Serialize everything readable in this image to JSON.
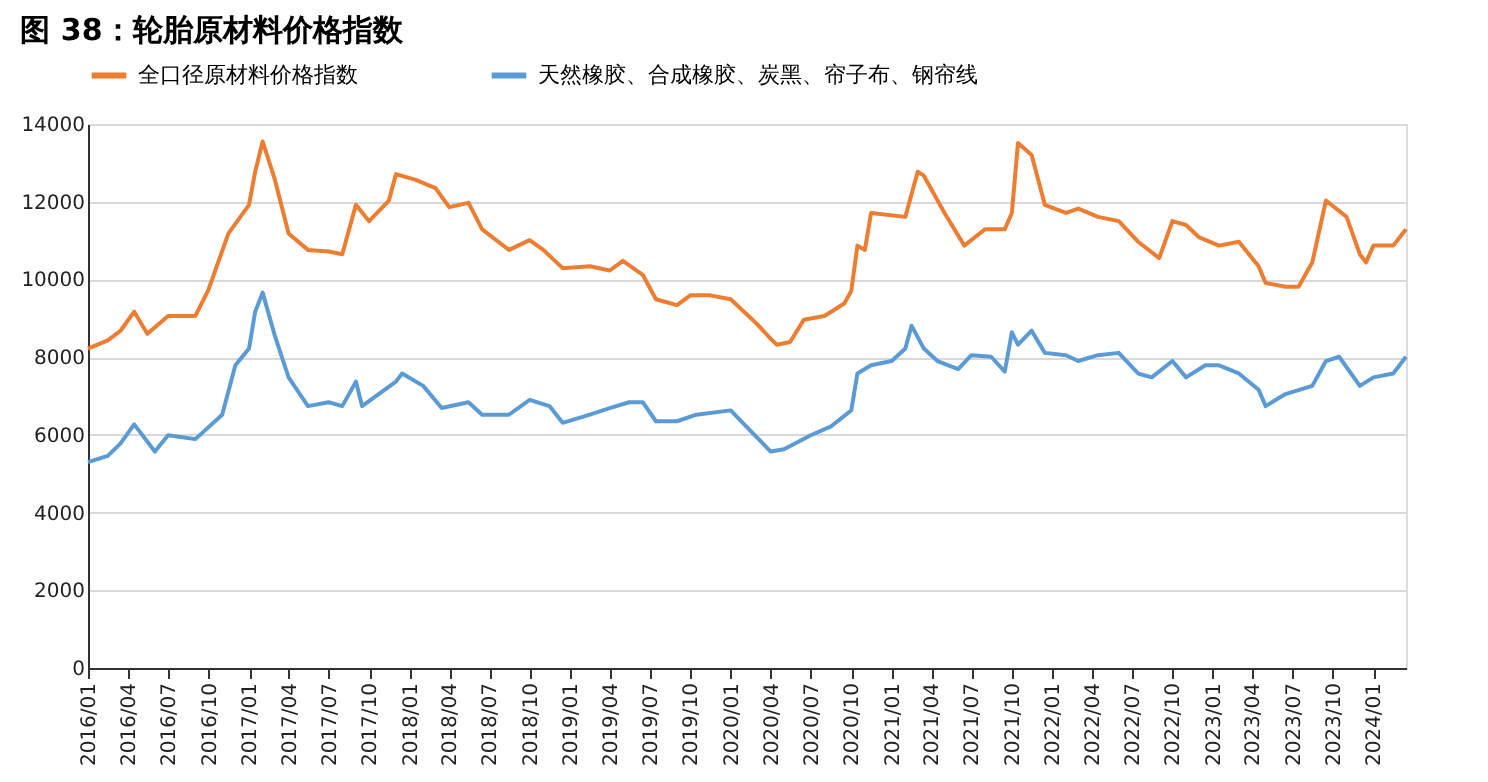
{
  "chart_data": {
    "type": "line",
    "title": "图 38：轮胎原材料价格指数",
    "xlim": [
      "2016-01-01",
      "2024-03-15"
    ],
    "xticks": [
      {
        "value": "2016-01-01",
        "label": "2016/01"
      },
      {
        "value": "2016-04-01",
        "label": "2016/04"
      },
      {
        "value": "2016-07-01",
        "label": "2016/07"
      },
      {
        "value": "2016-10-01",
        "label": "2016/10"
      },
      {
        "value": "2017-01-01",
        "label": "2017/01"
      },
      {
        "value": "2017-04-01",
        "label": "2017/04"
      },
      {
        "value": "2017-07-01",
        "label": "2017/07"
      },
      {
        "value": "2017-10-01",
        "label": "2017/10"
      },
      {
        "value": "2018-01-01",
        "label": "2018/01"
      },
      {
        "value": "2018-04-01",
        "label": "2018/04"
      },
      {
        "value": "2018-07-01",
        "label": "2018/07"
      },
      {
        "value": "2018-10-01",
        "label": "2018/10"
      },
      {
        "value": "2019-01-01",
        "label": "2019/01"
      },
      {
        "value": "2019-04-01",
        "label": "2019/04"
      },
      {
        "value": "2019-07-01",
        "label": "2019/07"
      },
      {
        "value": "2019-10-01",
        "label": "2019/10"
      },
      {
        "value": "2020-01-01",
        "label": "2020/01"
      },
      {
        "value": "2020-04-01",
        "label": "2020/04"
      },
      {
        "value": "2020-07-01",
        "label": "2020/07"
      },
      {
        "value": "2020-10-01",
        "label": "2020/10"
      },
      {
        "value": "2021-01-01",
        "label": "2021/01"
      },
      {
        "value": "2021-04-01",
        "label": "2021/04"
      },
      {
        "value": "2021-07-01",
        "label": "2021/07"
      },
      {
        "value": "2021-10-01",
        "label": "2021/10"
      },
      {
        "value": "2022-01-01",
        "label": "2022/01"
      },
      {
        "value": "2022-04-01",
        "label": "2022/04"
      },
      {
        "value": "2022-07-01",
        "label": "2022/07"
      },
      {
        "value": "2022-10-01",
        "label": "2022/10"
      },
      {
        "value": "2023-01-01",
        "label": "2023/01"
      },
      {
        "value": "2023-04-01",
        "label": "2023/04"
      },
      {
        "value": "2023-07-01",
        "label": "2023/07"
      },
      {
        "value": "2023-10-01",
        "label": "2023/10"
      },
      {
        "value": "2024-01-01",
        "label": "2024/01"
      }
    ],
    "ylim": [
      0,
      14000
    ],
    "yticks": [
      0,
      2000,
      4000,
      6000,
      8000,
      10000,
      12000,
      14000
    ],
    "grid": "y",
    "legend": "top",
    "marker": "none",
    "line_style": "solid",
    "series": [
      {
        "name": "全口径原材料价格指数",
        "color": "#ed7d31",
        "x": [
          "2016-01-01",
          "2016-02-15",
          "2016-03-15",
          "2016-04-15",
          "2016-05-15",
          "2016-07-01",
          "2016-09-01",
          "2016-10-01",
          "2016-11-15",
          "2017-01-01",
          "2017-01-15",
          "2017-02-01",
          "2017-03-01",
          "2017-04-01",
          "2017-05-15",
          "2017-07-01",
          "2017-08-01",
          "2017-09-01",
          "2017-10-01",
          "2017-11-15",
          "2017-12-01",
          "2018-01-15",
          "2018-03-01",
          "2018-04-01",
          "2018-05-15",
          "2018-06-15",
          "2018-08-15",
          "2018-10-01",
          "2018-11-01",
          "2018-12-15",
          "2019-02-15",
          "2019-04-01",
          "2019-05-01",
          "2019-06-15",
          "2019-07-15",
          "2019-09-01",
          "2019-10-01",
          "2019-11-15",
          "2020-01-01",
          "2020-03-01",
          "2020-04-01",
          "2020-04-15",
          "2020-05-15",
          "2020-06-15",
          "2020-08-01",
          "2020-09-15",
          "2020-10-01",
          "2020-10-15",
          "2020-11-01",
          "2020-11-15",
          "2021-02-01",
          "2021-03-01",
          "2021-03-15",
          "2021-05-01",
          "2021-06-15",
          "2021-08-01",
          "2021-09-15",
          "2021-10-01",
          "2021-10-15",
          "2021-11-15",
          "2021-12-15",
          "2022-02-01",
          "2022-03-01",
          "2022-04-15",
          "2022-06-01",
          "2022-07-15",
          "2022-09-01",
          "2022-10-01",
          "2022-11-01",
          "2022-12-01",
          "2023-01-15",
          "2023-03-01",
          "2023-04-15",
          "2023-05-01",
          "2023-06-15",
          "2023-07-15",
          "2023-08-15",
          "2023-09-15",
          "2023-11-01",
          "2023-12-01",
          "2023-12-15",
          "2024-01-01",
          "2024-02-15",
          "2024-03-15"
        ],
        "values": [
          8220,
          8430,
          8680,
          9170,
          8600,
          9060,
          9060,
          9740,
          11180,
          11920,
          12770,
          13550,
          12560,
          11180,
          10760,
          10720,
          10650,
          11920,
          11500,
          12030,
          12710,
          12560,
          12350,
          11860,
          11970,
          11290,
          10760,
          11010,
          10760,
          10290,
          10340,
          10230,
          10480,
          10120,
          9490,
          9340,
          9590,
          9590,
          9490,
          8850,
          8470,
          8320,
          8390,
          8960,
          9060,
          9380,
          9700,
          10870,
          10760,
          11710,
          11610,
          12770,
          12670,
          11710,
          10870,
          11290,
          11290,
          11710,
          13510,
          13200,
          11920,
          11710,
          11820,
          11610,
          11500,
          10970,
          10550,
          11500,
          11400,
          11080,
          10870,
          10970,
          10340,
          9910,
          9810,
          9810,
          10440,
          12030,
          11610,
          10650,
          10440,
          10870,
          10870,
          11290
        ]
      },
      {
        "name": "天然橡胶、合成橡胶、炭黑、帘子布、钢帘线",
        "color": "#5b9bd5",
        "x": [
          "2016-01-01",
          "2016-02-15",
          "2016-03-15",
          "2016-04-15",
          "2016-06-01",
          "2016-07-01",
          "2016-09-01",
          "2016-11-01",
          "2016-12-01",
          "2017-01-01",
          "2017-01-15",
          "2017-02-01",
          "2017-03-01",
          "2017-04-01",
          "2017-05-15",
          "2017-07-01",
          "2017-08-01",
          "2017-09-01",
          "2017-09-15",
          "2017-12-01",
          "2017-12-15",
          "2018-02-01",
          "2018-03-15",
          "2018-05-15",
          "2018-06-15",
          "2018-08-15",
          "2018-10-01",
          "2018-11-15",
          "2018-12-15",
          "2019-02-15",
          "2019-04-01",
          "2019-05-15",
          "2019-06-15",
          "2019-07-15",
          "2019-09-01",
          "2019-10-15",
          "2020-01-01",
          "2020-02-15",
          "2020-04-01",
          "2020-05-01",
          "2020-07-01",
          "2020-08-15",
          "2020-10-01",
          "2020-10-15",
          "2020-11-15",
          "2021-01-01",
          "2021-02-01",
          "2021-02-15",
          "2021-03-15",
          "2021-04-15",
          "2021-06-01",
          "2021-07-01",
          "2021-08-15",
          "2021-09-15",
          "2021-10-01",
          "2021-10-15",
          "2021-11-15",
          "2021-12-15",
          "2022-02-01",
          "2022-03-01",
          "2022-04-15",
          "2022-06-01",
          "2022-07-15",
          "2022-08-15",
          "2022-10-01",
          "2022-11-01",
          "2022-12-15",
          "2023-01-15",
          "2023-03-01",
          "2023-04-15",
          "2023-05-01",
          "2023-06-15",
          "2023-08-15",
          "2023-09-15",
          "2023-10-15",
          "2023-12-01",
          "2024-01-01",
          "2024-02-15",
          "2024-03-15"
        ],
        "values": [
          5300,
          5460,
          5780,
          6270,
          5570,
          5990,
          5890,
          6520,
          7790,
          8220,
          9170,
          9660,
          8540,
          7480,
          6740,
          6840,
          6740,
          7370,
          6740,
          7370,
          7580,
          7260,
          6690,
          6840,
          6520,
          6520,
          6900,
          6740,
          6310,
          6520,
          6690,
          6840,
          6840,
          6350,
          6350,
          6520,
          6630,
          6100,
          5570,
          5630,
          5990,
          6210,
          6630,
          7580,
          7790,
          7900,
          8220,
          8810,
          8220,
          7900,
          7690,
          8050,
          8010,
          7630,
          8640,
          8320,
          8680,
          8110,
          8050,
          7900,
          8050,
          8110,
          7580,
          7480,
          7900,
          7480,
          7790,
          7790,
          7580,
          7160,
          6740,
          7050,
          7260,
          7900,
          8010,
          7260,
          7480,
          7580,
          8010
        ]
      }
    ]
  }
}
